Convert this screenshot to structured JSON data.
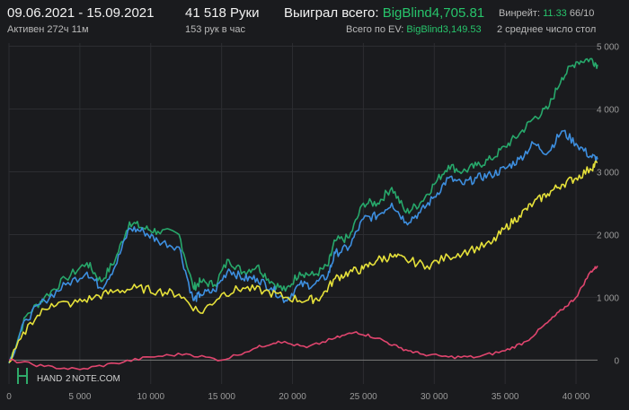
{
  "header": {
    "date_range": "09.06.2021 - 15.09.2021",
    "active": "Активен 272ч 11м",
    "hands": "41 518 Руки",
    "hands_per_hour": "153 рук в час",
    "won_label": "Выиграл всего:",
    "won_value": "BigBlind4,705.81",
    "ev_label": "Всего по EV:",
    "ev_value": "BigBlind3,149.53",
    "winrate_label": "Винрейт:",
    "winrate_value": "11.33",
    "winrate_suffix": "66/10",
    "avg_tables": "2 среднее число стол"
  },
  "watermark": {
    "left": "HAND",
    "mid": "2",
    "right": "NOTE.COM"
  },
  "chart_data": {
    "type": "line",
    "x_ticks": [
      "0",
      "5 000",
      "10 000",
      "15 000",
      "20 000",
      "25 000",
      "30 000",
      "35 000",
      "40 000"
    ],
    "y_ticks": [
      "0",
      "1 000",
      "2 000",
      "3 000",
      "4 000",
      "5 000"
    ],
    "xlim": [
      0,
      41518
    ],
    "ylim": [
      -380,
      5050
    ],
    "grid": true,
    "series": [
      {
        "color": "#27a86b",
        "x": [
          0,
          1200,
          2500,
          4000,
          5500,
          6500,
          7500,
          8500,
          9500,
          10500,
          12000,
          13000,
          13500,
          14500,
          15500,
          16500,
          17500,
          18500,
          19500,
          20500,
          21500,
          22500,
          23000,
          24000,
          25000,
          26000,
          27000,
          28000,
          29000,
          30000,
          31000,
          32000,
          33000,
          34000,
          35000,
          36000,
          37000,
          38000,
          39000,
          40000,
          41000,
          41518
        ],
        "y": [
          -50,
          700,
          1000,
          1300,
          1550,
          1250,
          1600,
          2200,
          2100,
          2050,
          2000,
          1150,
          1250,
          1200,
          1600,
          1400,
          1500,
          1250,
          1100,
          1400,
          1350,
          1500,
          1900,
          1950,
          2500,
          2500,
          2750,
          2350,
          2500,
          2800,
          3100,
          3000,
          3100,
          3200,
          3400,
          3600,
          3850,
          4000,
          4500,
          4750,
          4800,
          4706
        ]
      },
      {
        "color": "#3d8fe0",
        "x": [
          0,
          1200,
          2500,
          4000,
          5500,
          6500,
          7500,
          8500,
          9500,
          10500,
          12000,
          13000,
          13500,
          14500,
          15500,
          16500,
          17500,
          18500,
          19500,
          20500,
          21500,
          22500,
          23000,
          24000,
          25000,
          26000,
          27000,
          28000,
          29000,
          30000,
          31000,
          32000,
          33000,
          34000,
          35000,
          36000,
          37000,
          38000,
          39000,
          40000,
          41000,
          41518
        ],
        "y": [
          -50,
          650,
          950,
          1200,
          1400,
          1150,
          1500,
          2100,
          2050,
          1900,
          1800,
          950,
          1050,
          1100,
          1450,
          1300,
          1300,
          1150,
          950,
          1200,
          1200,
          1350,
          1700,
          1800,
          2250,
          2300,
          2500,
          2200,
          2350,
          2600,
          2900,
          2800,
          2900,
          2950,
          3050,
          3200,
          3450,
          3300,
          3650,
          3450,
          3250,
          3200
        ]
      },
      {
        "color": "#e6e13a",
        "x": [
          0,
          1500,
          3000,
          4500,
          6000,
          7500,
          9000,
          10500,
          12000,
          13500,
          15000,
          16500,
          18000,
          19500,
          21000,
          22000,
          23000,
          24000,
          25000,
          26000,
          27000,
          28000,
          29500,
          31000,
          32500,
          34000,
          35000,
          36000,
          37000,
          38000,
          39000,
          40000,
          41000,
          41518
        ],
        "y": [
          -40,
          600,
          900,
          900,
          1000,
          1100,
          1150,
          1100,
          1050,
          750,
          1050,
          1150,
          1100,
          1000,
          950,
          1000,
          1300,
          1400,
          1450,
          1600,
          1650,
          1600,
          1500,
          1650,
          1750,
          1850,
          2100,
          2300,
          2500,
          2650,
          2800,
          2900,
          3050,
          3150
        ]
      },
      {
        "color": "#e0456e",
        "x": [
          0,
          2500,
          5000,
          7500,
          10000,
          12500,
          15000,
          17500,
          19000,
          21000,
          23000,
          24500,
          26000,
          27500,
          29000,
          31000,
          33000,
          35000,
          36500,
          38000,
          39000,
          40000,
          41000,
          41518
        ],
        "y": [
          0,
          -100,
          -150,
          -50,
          50,
          100,
          0,
          200,
          300,
          200,
          350,
          450,
          350,
          200,
          100,
          50,
          50,
          150,
          300,
          600,
          800,
          1000,
          1400,
          1500
        ]
      }
    ]
  }
}
